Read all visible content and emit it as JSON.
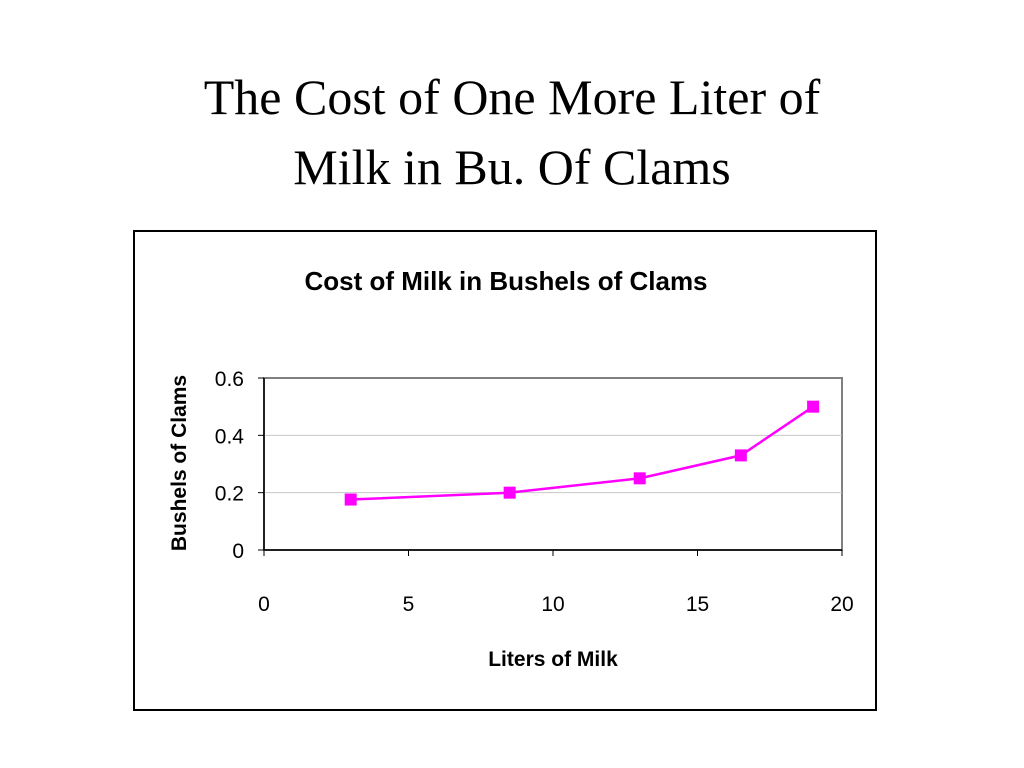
{
  "slide": {
    "title_line1": "The Cost of One More Liter of",
    "title_line2": "Milk in Bu. Of Clams"
  },
  "chart_data": {
    "type": "scatter",
    "title": "Cost of Milk in Bushels of Clams",
    "xlabel": "Liters of Milk",
    "ylabel": "Bushels of Clams",
    "xlim": [
      0,
      20
    ],
    "ylim": [
      0,
      0.6
    ],
    "x_ticks": [
      "0",
      "5",
      "10",
      "15",
      "20"
    ],
    "y_ticks": [
      "0",
      "0.2",
      "0.4",
      "0.6"
    ],
    "grid": true,
    "legend": "none",
    "series": [
      {
        "color": "#ff00ff",
        "marker": "square",
        "connected": true,
        "x": [
          3,
          8.5,
          13,
          16.5,
          19
        ],
        "y": [
          0.176,
          0.2,
          0.25,
          0.33,
          0.5
        ]
      }
    ]
  }
}
